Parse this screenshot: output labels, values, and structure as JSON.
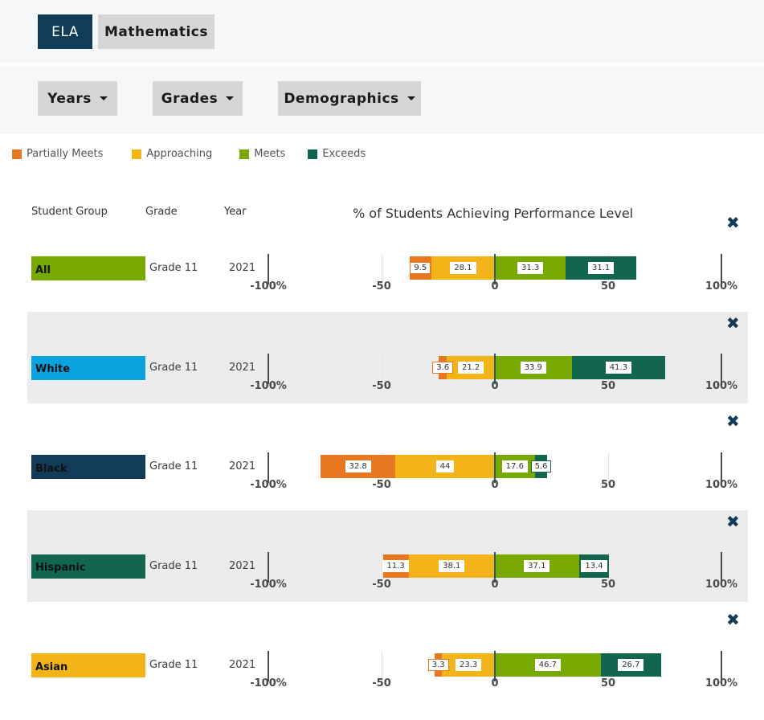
{
  "tabs": [
    {
      "label": "ELA",
      "active": true
    },
    {
      "label": "Mathematics",
      "active": false
    }
  ],
  "filters": [
    {
      "label": "Years"
    },
    {
      "label": "Grades"
    },
    {
      "label": "Demographics"
    }
  ],
  "legend": [
    {
      "label": "Partially Meets",
      "color": "#e87722"
    },
    {
      "label": "Approaching",
      "color": "#f2b418"
    },
    {
      "label": "Meets",
      "color": "#78a900"
    },
    {
      "label": "Exceeds",
      "color": "#12664f"
    }
  ],
  "headers": {
    "group": "Student Group",
    "grade": "Grade",
    "year": "Year",
    "chart": "% of Students Achieving Performance Level"
  },
  "remove_icon": "✖",
  "chart_data": {
    "type": "bar",
    "subtype": "diverging-stacked",
    "title": "% of Students Achieving Performance Level",
    "xlim": [
      -100,
      100
    ],
    "tick_labels": [
      "-100%",
      "-50",
      "0",
      "50",
      "100%"
    ],
    "categories": [
      "All",
      "White",
      "Black",
      "Hispanic",
      "Asian"
    ],
    "group_colors": [
      "#78a900",
      "#0ba2e0",
      "#123b57",
      "#12664f",
      "#f2b418"
    ],
    "grades": [
      "Grade 11",
      "Grade 11",
      "Grade 11",
      "Grade 11",
      "Grade 11"
    ],
    "years": [
      "2021",
      "2021",
      "2021",
      "2021",
      "2021"
    ],
    "series": [
      {
        "name": "Partially Meets",
        "side": "negative",
        "values": [
          9.5,
          3.6,
          32.8,
          11.3,
          3.3
        ]
      },
      {
        "name": "Approaching",
        "side": "negative",
        "values": [
          28.1,
          21.2,
          44,
          38.1,
          23.3
        ]
      },
      {
        "name": "Meets",
        "side": "positive",
        "values": [
          31.3,
          33.9,
          17.6,
          37.1,
          46.7
        ]
      },
      {
        "name": "Exceeds",
        "side": "positive",
        "values": [
          31.1,
          41.3,
          5.6,
          13.4,
          26.7
        ]
      }
    ]
  }
}
